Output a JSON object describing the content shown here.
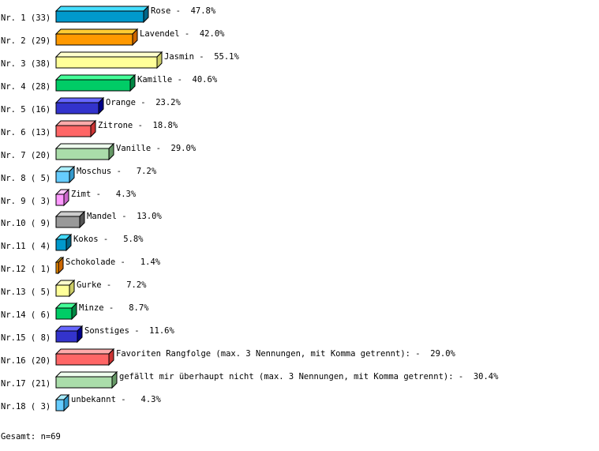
{
  "chart_data": {
    "type": "bar",
    "orientation": "horizontal",
    "style": "3d",
    "unit": "%",
    "categories": [
      "Rose",
      "Lavendel",
      "Jasmin",
      "Kamille",
      "Orange",
      "Zitrone",
      "Vanille",
      "Moschus",
      "Zimt",
      "Mandel",
      "Kokos",
      "Schokolade",
      "Gurke",
      "Minze",
      "Sonstiges",
      "Favoriten Rangfolge (max. 3 Nennungen, mit Komma getrennt):",
      "gefällt mir überhaupt nicht (max. 3 Nennungen, mit Komma getrennt):",
      "unbekannt"
    ],
    "row_labels": [
      "Nr. 1 (33)",
      "Nr. 2 (29)",
      "Nr. 3 (38)",
      "Nr. 4 (28)",
      "Nr. 5 (16)",
      "Nr. 6 (13)",
      "Nr. 7 (20)",
      "Nr. 8 ( 5)",
      "Nr. 9 ( 3)",
      "Nr.10 ( 9)",
      "Nr.11 ( 4)",
      "Nr.12 ( 1)",
      "Nr.13 ( 5)",
      "Nr.14 ( 6)",
      "Nr.15 ( 8)",
      "Nr.16 (20)",
      "Nr.17 (21)",
      "Nr.18 ( 3)"
    ],
    "counts": [
      33,
      29,
      38,
      28,
      16,
      13,
      20,
      5,
      3,
      9,
      4,
      1,
      5,
      6,
      8,
      20,
      21,
      3
    ],
    "values": [
      47.8,
      42.0,
      55.1,
      40.6,
      23.2,
      18.8,
      29.0,
      7.2,
      4.3,
      13.0,
      5.8,
      1.4,
      7.2,
      8.7,
      11.6,
      29.0,
      30.4,
      4.3
    ],
    "value_labels": [
      "47.8%",
      "42.0%",
      "55.1%",
      "40.6%",
      "23.2%",
      "18.8%",
      "29.0%",
      " 7.2%",
      " 4.3%",
      "13.0%",
      " 5.8%",
      " 1.4%",
      " 7.2%",
      " 8.7%",
      "11.6%",
      "29.0%",
      "30.4%",
      " 4.3%"
    ],
    "palette": [
      {
        "front": "#0099cc",
        "top": "#44ddff",
        "side": "#006688"
      },
      {
        "front": "#ff9900",
        "top": "#ffcc33",
        "side": "#cc6600"
      },
      {
        "front": "#ffff99",
        "top": "#ffffcc",
        "side": "#cccc66"
      },
      {
        "front": "#00cc66",
        "top": "#44ff99",
        "side": "#008844"
      },
      {
        "front": "#3333cc",
        "top": "#6666ff",
        "side": "#000088"
      },
      {
        "front": "#ff6666",
        "top": "#ffaaaa",
        "side": "#cc3333"
      },
      {
        "front": "#aaddaa",
        "top": "#eeffee",
        "side": "#669966"
      },
      {
        "front": "#66ccff",
        "top": "#aaeeff",
        "side": "#3399cc"
      },
      {
        "front": "#ff99ff",
        "top": "#ffccff",
        "side": "#cc66cc"
      },
      {
        "front": "#999999",
        "top": "#cccccc",
        "side": "#555555"
      }
    ],
    "xlim": [
      0,
      100
    ],
    "grid": false,
    "legend": "none"
  },
  "footer": {
    "total": "Gesamt: n=69"
  }
}
